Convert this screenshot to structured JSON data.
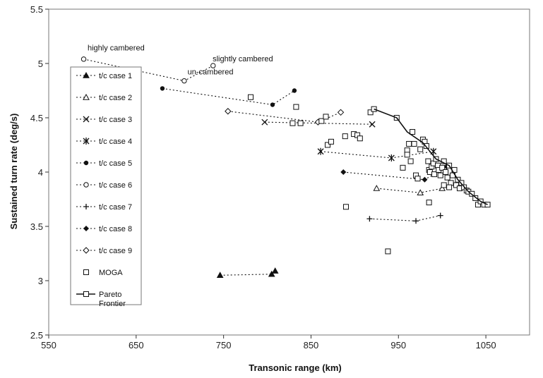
{
  "chart_data": {
    "type": "scatter",
    "title": "",
    "xlabel": "Transonic range (km)",
    "ylabel": "Sustained turn rate (deg/s)",
    "xlim": [
      550,
      1100
    ],
    "ylim": [
      2.5,
      5.5
    ],
    "xticks": [
      "550",
      "650",
      "750",
      "850",
      "950",
      "1050"
    ],
    "yticks": [
      "2.5",
      "3",
      "3.5",
      "4",
      "4.5",
      "5",
      "5.5"
    ],
    "grid": false,
    "legend_position": "left",
    "annotations": [
      {
        "text": "highly cambered",
        "x": 627,
        "y": 5.12
      },
      {
        "text": "slightly cambered",
        "x": 772,
        "y": 5.02
      },
      {
        "text": "un-cambered",
        "x": 735,
        "y": 4.9
      }
    ],
    "series": [
      {
        "name": "t/c case 1",
        "marker": "triangle-filled",
        "style": "dotted",
        "points": [
          [
            746,
            3.05
          ],
          [
            805,
            3.06
          ],
          [
            809,
            3.09
          ]
        ]
      },
      {
        "name": "t/c case 2",
        "marker": "triangle-open",
        "style": "dotted",
        "points": [
          [
            925,
            3.85
          ],
          [
            975,
            3.81
          ],
          [
            1000,
            3.85
          ]
        ]
      },
      {
        "name": "t/c case 3",
        "marker": "x",
        "style": "dotted",
        "points": [
          [
            797,
            4.46
          ],
          [
            920,
            4.44
          ]
        ]
      },
      {
        "name": "t/c case 4",
        "marker": "asterisk",
        "style": "dotted",
        "points": [
          [
            861,
            4.19
          ],
          [
            942,
            4.13
          ],
          [
            990,
            4.19
          ]
        ]
      },
      {
        "name": "t/c case 5",
        "marker": "circle-filled",
        "style": "dotted",
        "points": [
          [
            680,
            4.77
          ],
          [
            806,
            4.62
          ],
          [
            831,
            4.75
          ]
        ]
      },
      {
        "name": "t/c case 6",
        "marker": "circle-open",
        "style": "dotted",
        "points": [
          [
            590,
            5.04
          ],
          [
            705,
            4.84
          ],
          [
            738,
            4.98
          ]
        ]
      },
      {
        "name": "t/c case 7",
        "marker": "plus",
        "style": "dotted",
        "points": [
          [
            917,
            3.57
          ],
          [
            970,
            3.55
          ],
          [
            998,
            3.6
          ]
        ]
      },
      {
        "name": "t/c case 8",
        "marker": "diamond-filled",
        "style": "dotted",
        "points": [
          [
            887,
            4.0
          ],
          [
            980,
            3.93
          ],
          [
            1005,
            4.05
          ]
        ]
      },
      {
        "name": "t/c case 9",
        "marker": "diamond-open",
        "style": "dotted",
        "points": [
          [
            755,
            4.56
          ],
          [
            858,
            4.46
          ],
          [
            884,
            4.55
          ]
        ]
      },
      {
        "name": "MOGA",
        "marker": "square-open",
        "style": "none",
        "points": [
          [
            781,
            4.69
          ],
          [
            833,
            4.6
          ],
          [
            829,
            4.45
          ],
          [
            838,
            4.45
          ],
          [
            862,
            4.47
          ],
          [
            867,
            4.51
          ],
          [
            869,
            4.25
          ],
          [
            873,
            4.28
          ],
          [
            889,
            4.33
          ],
          [
            899,
            4.35
          ],
          [
            903,
            4.34
          ],
          [
            906,
            4.31
          ],
          [
            890,
            3.68
          ],
          [
            938,
            3.27
          ],
          [
            918,
            4.55
          ],
          [
            922,
            4.58
          ],
          [
            948,
            4.5
          ],
          [
            960,
            4.2
          ],
          [
            962,
            4.26
          ],
          [
            966,
            4.37
          ],
          [
            968,
            4.26
          ],
          [
            955,
            4.04
          ],
          [
            960,
            4.16
          ],
          [
            964,
            4.1
          ],
          [
            970,
            3.97
          ],
          [
            975,
            4.21
          ],
          [
            978,
            4.3
          ],
          [
            980,
            4.28
          ],
          [
            982,
            4.24
          ],
          [
            984,
            4.1
          ],
          [
            985,
            4.02
          ],
          [
            986,
            4.0
          ],
          [
            988,
            4.05
          ],
          [
            990,
            4.08
          ],
          [
            991,
            3.98
          ],
          [
            993,
            4.12
          ],
          [
            995,
            4.06
          ],
          [
            996,
            4.02
          ],
          [
            998,
            3.97
          ],
          [
            1000,
            4.04
          ],
          [
            1002,
            4.1
          ],
          [
            1004,
            4.0
          ],
          [
            1006,
            3.95
          ],
          [
            1008,
            4.06
          ],
          [
            1010,
            3.9
          ],
          [
            1012,
            3.97
          ],
          [
            1014,
            4.02
          ],
          [
            1016,
            3.88
          ],
          [
            1018,
            3.93
          ],
          [
            1020,
            3.85
          ],
          [
            1022,
            3.9
          ],
          [
            1025,
            3.86
          ],
          [
            1028,
            3.83
          ],
          [
            1030,
            3.82
          ],
          [
            1034,
            3.8
          ],
          [
            1038,
            3.76
          ],
          [
            1041,
            3.7
          ],
          [
            1044,
            3.73
          ],
          [
            1048,
            3.7
          ],
          [
            1052,
            3.7
          ],
          [
            1002,
            3.88
          ],
          [
            1008,
            3.86
          ],
          [
            972,
            3.94
          ],
          [
            985,
            3.72
          ]
        ]
      },
      {
        "name": "Pareto Frontier",
        "marker": "square-open",
        "style": "solid",
        "points": [
          [
            922,
            4.58
          ],
          [
            948,
            4.5
          ],
          [
            960,
            4.37
          ],
          [
            978,
            4.27
          ],
          [
            993,
            4.12
          ],
          [
            1008,
            4.06
          ],
          [
            1018,
            3.93
          ],
          [
            1030,
            3.82
          ],
          [
            1044,
            3.73
          ],
          [
            1052,
            3.7
          ]
        ]
      }
    ]
  }
}
